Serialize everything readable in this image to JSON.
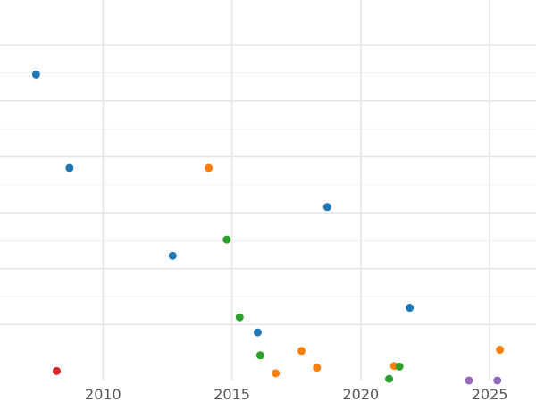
{
  "chart_data": {
    "type": "scatter",
    "title": "",
    "xlabel": "",
    "ylabel": "",
    "xlim": [
      2006.0,
      2026.8
    ],
    "ylim": [
      0,
      6.8
    ],
    "grid": true,
    "x_ticks": [
      2010,
      2015,
      2020,
      2025
    ],
    "x_minor_ticks": [],
    "y_grid_major": [
      1,
      2,
      3,
      4,
      5,
      6
    ],
    "y_grid_minor": [
      1.5,
      2.5,
      3.5,
      4.5,
      5.5
    ],
    "y_tick_labels_visible": false,
    "series": [
      {
        "color": "#1f77b4",
        "points": [
          {
            "x": 2007.4,
            "y": 5.47
          },
          {
            "x": 2008.7,
            "y": 3.8
          },
          {
            "x": 2012.7,
            "y": 2.23
          },
          {
            "x": 2016.0,
            "y": 0.86
          },
          {
            "x": 2018.7,
            "y": 3.1
          },
          {
            "x": 2021.9,
            "y": 1.3
          }
        ]
      },
      {
        "color": "#ff7f0e",
        "points": [
          {
            "x": 2014.1,
            "y": 3.8
          },
          {
            "x": 2016.7,
            "y": 0.13
          },
          {
            "x": 2017.7,
            "y": 0.53
          },
          {
            "x": 2018.3,
            "y": 0.23
          },
          {
            "x": 2021.3,
            "y": 0.26
          },
          {
            "x": 2025.4,
            "y": 0.55
          }
        ]
      },
      {
        "color": "#2ca02c",
        "points": [
          {
            "x": 2014.8,
            "y": 2.52
          },
          {
            "x": 2015.3,
            "y": 1.13
          },
          {
            "x": 2016.1,
            "y": 0.45
          },
          {
            "x": 2021.1,
            "y": 0.03
          },
          {
            "x": 2021.5,
            "y": 0.25
          }
        ]
      },
      {
        "color": "#d62728",
        "points": [
          {
            "x": 2008.2,
            "y": 0.17
          }
        ]
      },
      {
        "color": "#9467bd",
        "points": [
          {
            "x": 2024.2,
            "y": 0.0
          },
          {
            "x": 2025.3,
            "y": 0.0
          }
        ]
      }
    ]
  }
}
